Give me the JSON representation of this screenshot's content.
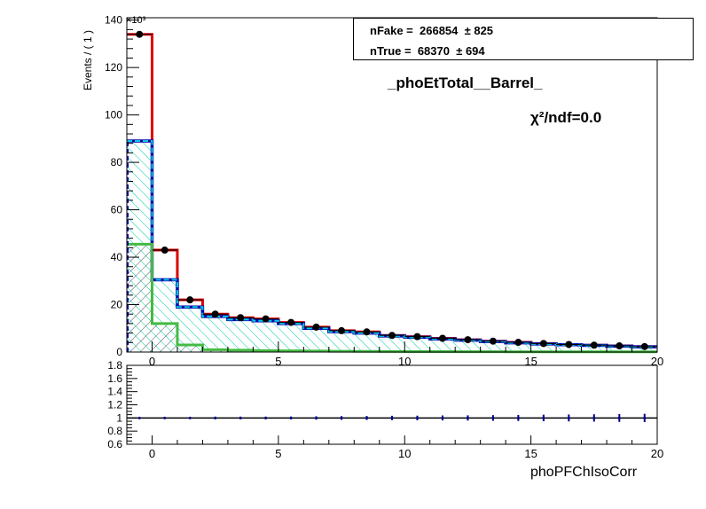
{
  "chart_data": [
    {
      "type": "histogram",
      "name": "main-panel",
      "ylabel": "Events / ( 1 )",
      "y_multiplier": "×10³",
      "xlim": [
        -1,
        20
      ],
      "ylim": [
        0,
        141
      ],
      "x_ticks": [
        0,
        5,
        10,
        15,
        20
      ],
      "y_ticks": [
        0,
        20,
        40,
        60,
        80,
        100,
        120,
        140
      ],
      "bin_edges": [
        -1,
        0,
        1,
        2,
        3,
        4,
        5,
        6,
        7,
        8,
        9,
        10,
        11,
        12,
        13,
        14,
        15,
        16,
        17,
        18,
        19,
        20
      ],
      "series": [
        {
          "role": "total-fit",
          "color": "#dd0000",
          "values": [
            134,
            43,
            22,
            16,
            14.5,
            14,
            12.5,
            10.5,
            9,
            8.5,
            7,
            6.5,
            5.8,
            5.2,
            4.6,
            4.1,
            3.6,
            3.2,
            2.9,
            2.6,
            2.3
          ]
        },
        {
          "role": "fake-template",
          "color": "#00ccdd",
          "hatch": "#00ccaa",
          "values": [
            89,
            30.5,
            19,
            15,
            13.7,
            13.2,
            12,
            10,
            8.6,
            8,
            6.8,
            6.2,
            5.5,
            5,
            4.4,
            3.9,
            3.4,
            3.1,
            2.8,
            2.5,
            2.2
          ]
        },
        {
          "role": "true-template",
          "color": "#44bb44",
          "hatch": "#555555",
          "values": [
            45.5,
            12,
            3,
            1,
            0.8,
            0.6,
            0.5,
            0.4,
            0.35,
            0.3,
            0.25,
            0.2,
            0.2,
            0.15,
            0.15,
            0.1,
            0.1,
            0.1,
            0.1,
            0.1,
            0.1
          ]
        },
        {
          "role": "data",
          "color": "#000000",
          "values": [
            134,
            43,
            22,
            16,
            14.5,
            14,
            12.5,
            10.5,
            9,
            8.5,
            7,
            6.5,
            5.8,
            5.2,
            4.6,
            4.1,
            3.6,
            3.2,
            2.9,
            2.6,
            2.3
          ]
        }
      ]
    },
    {
      "type": "ratio",
      "name": "ratio-panel",
      "xlabel": "phoPFChIsoCorr",
      "xlim": [
        -1,
        20
      ],
      "ylim": [
        0.6,
        1.8
      ],
      "x_ticks": [
        0,
        5,
        10,
        15,
        20
      ],
      "y_ticks": [
        0.6,
        0.8,
        1,
        1.2,
        1.4,
        1.6,
        1.8
      ],
      "x": [
        -0.5,
        0.5,
        1.5,
        2.5,
        3.5,
        4.5,
        5.5,
        6.5,
        7.5,
        8.5,
        9.5,
        10.5,
        11.5,
        12.5,
        13.5,
        14.5,
        15.5,
        16.5,
        17.5,
        18.5,
        19.5
      ],
      "values": [
        1,
        1,
        1,
        1,
        1,
        1,
        1,
        1,
        1,
        1,
        1,
        1,
        1,
        1,
        1,
        1,
        1,
        1,
        1,
        1,
        1
      ],
      "errors": [
        0.005,
        0.01,
        0.015,
        0.02,
        0.02,
        0.02,
        0.022,
        0.025,
        0.028,
        0.03,
        0.033,
        0.035,
        0.038,
        0.04,
        0.043,
        0.046,
        0.05,
        0.053,
        0.056,
        0.06,
        0.063
      ]
    }
  ],
  "legend": {
    "nfake_label": "nFake =  266854  ± 825",
    "ntrue_label": "nTrue =  68370  ± 694"
  },
  "title": "_phoEtTotal__Barrel_",
  "chi2_label": "χ²/ndf=0.0"
}
